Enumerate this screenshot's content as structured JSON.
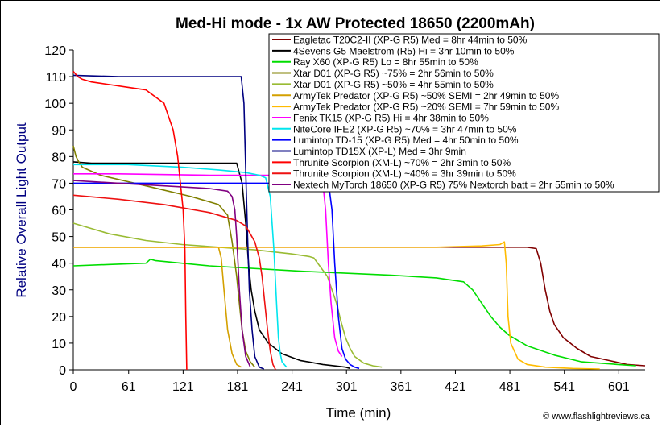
{
  "chart_data": {
    "type": "line",
    "title": "Med-Hi mode - 1x AW Protected 18650 (2200mAh)",
    "xlabel": "Time (min)",
    "ylabel": "Relative Overall Light Output",
    "xlim": [
      0,
      630
    ],
    "ylim": [
      0,
      120
    ],
    "xticks": [
      0,
      61,
      121,
      181,
      241,
      301,
      361,
      421,
      481,
      541,
      601
    ],
    "yticks": [
      0,
      10,
      20,
      30,
      40,
      50,
      60,
      70,
      80,
      90,
      100,
      110,
      120
    ],
    "grid": false,
    "legend_position": "top-right",
    "credit": "© www.flashlightreviews.ca",
    "series": [
      {
        "name": "Eagletac T20C2-II (XP-G R5) Med = 8hr 44min to 50%",
        "color": "#800000",
        "x": [
          0,
          20,
          100,
          200,
          300,
          400,
          480,
          500,
          510,
          515,
          520,
          525,
          530,
          540,
          555,
          570,
          590,
          610,
          630
        ],
        "y": [
          46,
          46,
          46,
          46,
          46,
          46,
          46,
          46,
          45.5,
          40,
          30,
          22,
          17,
          12,
          8,
          5,
          3.5,
          2,
          1.5
        ]
      },
      {
        "name": "4Sevens G5 Maelstrom (R5) Hi = 3hr 10min to 50%",
        "color": "#000000",
        "x": [
          0,
          20,
          60,
          120,
          180,
          186,
          190,
          193,
          196,
          200,
          205,
          215,
          230,
          250,
          275,
          300,
          305
        ],
        "y": [
          78,
          77.5,
          77.5,
          77.5,
          77.5,
          70,
          55,
          40,
          30,
          22,
          15,
          10,
          6,
          3.5,
          2,
          1,
          0.5
        ]
      },
      {
        "name": "Ray X60 (XP-G R5) Lo = 8hr 55min to 50%",
        "color": "#00dd00",
        "x": [
          0,
          40,
          80,
          85,
          90,
          150,
          250,
          350,
          400,
          430,
          440,
          450,
          460,
          470,
          480,
          500,
          530,
          560,
          600,
          620
        ],
        "y": [
          39,
          39.5,
          40,
          41.5,
          41,
          39,
          37,
          35.5,
          34.5,
          33,
          30,
          25,
          20,
          16,
          13,
          9,
          5.5,
          3,
          2,
          1.5
        ]
      },
      {
        "name": "Xtar D01 (XP-G R5) ~75% = 2hr 56min to 50%",
        "color": "#808000",
        "x": [
          0,
          3,
          6,
          10,
          30,
          80,
          130,
          160,
          170,
          175,
          180,
          183,
          186,
          190,
          195,
          200
        ],
        "y": [
          84,
          80,
          78,
          76,
          73,
          69,
          65,
          62,
          58,
          48,
          35,
          25,
          15,
          7,
          3,
          1
        ]
      },
      {
        "name": "Xtar D01 (XP-G R5) ~50% = 4hr 55min to 50%",
        "color": "#99bb33",
        "x": [
          0,
          40,
          80,
          120,
          160,
          200,
          240,
          260,
          265,
          280,
          290,
          295,
          300,
          305,
          310,
          320,
          330,
          340
        ],
        "y": [
          55,
          51,
          48.5,
          47,
          46,
          45,
          43.5,
          42.5,
          42,
          35,
          25,
          18,
          12,
          8,
          5,
          2.5,
          1.5,
          1
        ]
      },
      {
        "name": "ArmyTek Predator (XP-G R5) ~50% SEMI = 2hr 49min to 50%",
        "color": "#d4a000",
        "x": [
          0,
          10,
          50,
          100,
          130,
          160,
          163,
          166,
          170,
          175,
          180,
          185
        ],
        "y": [
          46,
          46,
          46,
          46,
          46,
          46,
          42,
          30,
          15,
          6,
          2,
          1
        ]
      },
      {
        "name": "ArmyTek Predator (XP-G R5) ~20% SEMI = 7hr 59min to 50%",
        "color": "#ffbb00",
        "x": [
          0,
          100,
          200,
          300,
          400,
          450,
          470,
          475,
          477,
          479,
          482,
          490,
          500,
          520,
          550,
          580
        ],
        "y": [
          46,
          46,
          46,
          46,
          46,
          46.5,
          47,
          48,
          40,
          20,
          10,
          4,
          2,
          1,
          0.5,
          0.3
        ]
      },
      {
        "name": "Fenix TK15 (XP-G R5) Hi = 4hr 38min to 50%",
        "color": "#ff00ff",
        "x": [
          0,
          50,
          150,
          250,
          270,
          275,
          278,
          281,
          284,
          288,
          292,
          296
        ],
        "y": [
          73.5,
          73.5,
          73,
          73,
          72,
          70,
          60,
          40,
          25,
          12,
          7,
          5
        ]
      },
      {
        "name": "NiteCore IFE2 (XP-G R5) ~70% = 3hr 47min to 50%",
        "color": "#00e5ee",
        "x": [
          0,
          60,
          120,
          160,
          190,
          205,
          212,
          217,
          221,
          224,
          226,
          228,
          230,
          235
        ],
        "y": [
          77,
          77,
          76,
          75,
          74,
          73,
          72,
          65,
          45,
          25,
          12,
          6,
          3,
          1
        ]
      },
      {
        "name": "Lumintop TD-15 (XP-G R5) Med = 4hr 50min to 50%",
        "color": "#0000ff",
        "x": [
          0,
          100,
          200,
          280,
          282,
          285,
          288,
          292,
          296,
          300,
          305,
          310,
          315
        ],
        "y": [
          70,
          70,
          70,
          70,
          68,
          60,
          40,
          20,
          8,
          4,
          2,
          1,
          0.5
        ]
      },
      {
        "name": "Lumintop TD15X (XP-L) Med = 3hr 9min",
        "color": "#000080",
        "x": [
          0,
          50,
          100,
          150,
          185,
          188,
          190,
          192,
          194,
          197,
          200,
          205,
          210
        ],
        "y": [
          110.5,
          110,
          110,
          110,
          110,
          100,
          75,
          50,
          30,
          15,
          5,
          1,
          0.3
        ]
      },
      {
        "name": "Thrunite Scorpion (XM-L) ~70% = 2hr 3min to 50%",
        "color": "#ff0000",
        "x": [
          0,
          5,
          10,
          20,
          40,
          60,
          80,
          100,
          105,
          110,
          115,
          118,
          121,
          123,
          124,
          125
        ],
        "y": [
          112,
          110,
          109,
          108,
          107,
          106,
          105,
          100,
          95,
          90,
          80,
          70,
          60,
          45,
          20,
          0
        ]
      },
      {
        "name": "Thrunite Scorpion (XM-L) ~40% = 3hr 39min to 50%",
        "color": "#ee1111",
        "x": [
          0,
          50,
          100,
          150,
          180,
          190,
          195,
          200,
          205,
          208,
          211,
          214,
          217,
          220,
          223
        ],
        "y": [
          65.5,
          64,
          62,
          59,
          56,
          54,
          51,
          48,
          42,
          35,
          25,
          15,
          7,
          2,
          0
        ]
      },
      {
        "name": "Nextech MyTorch 18650 (XP-G R5) 75% Nextorch batt = 2hr 55min to 50%",
        "color": "#800080",
        "x": [
          0,
          50,
          100,
          150,
          170,
          175,
          178,
          180,
          183,
          186,
          190,
          195
        ],
        "y": [
          71,
          70,
          69,
          68,
          67,
          65,
          60,
          50,
          30,
          15,
          5,
          1
        ]
      }
    ]
  }
}
